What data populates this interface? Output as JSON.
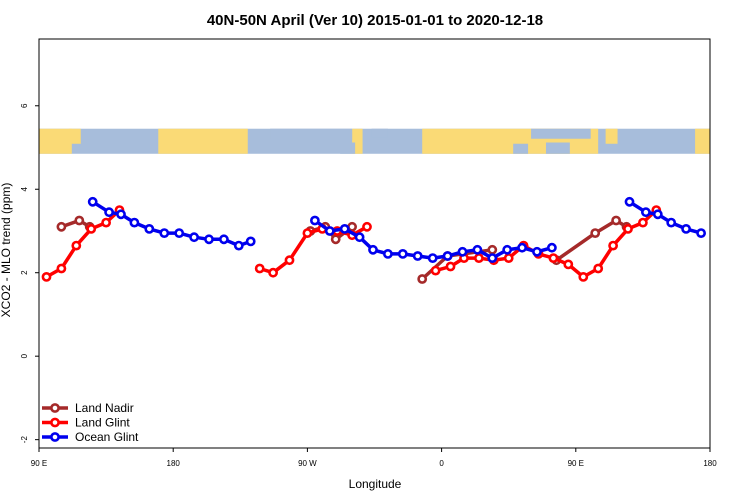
{
  "chart_data": {
    "type": "line",
    "title": "40N-50N April (Ver 10)   2015-01-01 to 2020-12-18",
    "xlabel": "Longitude",
    "ylabel": "XCO2 - MLO trend (ppm)",
    "xlim": [
      90,
      540
    ],
    "ylim": [
      -2.2,
      7.6
    ],
    "x_ticks": [
      {
        "value": 90,
        "label": "90 E"
      },
      {
        "value": 180,
        "label": "180"
      },
      {
        "value": 270,
        "label": "90 W"
      },
      {
        "value": 360,
        "label": "0"
      },
      {
        "value": 450,
        "label": "90 E"
      },
      {
        "value": 540,
        "label": "180"
      }
    ],
    "y_ticks": [
      {
        "value": -2,
        "label": "-2"
      },
      {
        "value": 0,
        "label": "0"
      },
      {
        "value": 2,
        "label": "2"
      },
      {
        "value": 4,
        "label": "4"
      },
      {
        "value": 6,
        "label": "6"
      }
    ],
    "map_strip": {
      "ymin": 4.85,
      "ymax": 5.45,
      "land_color": "#FADA76",
      "ocean_color": "#A7BDDB"
    },
    "legend_position": "bottom-left",
    "series": [
      {
        "name": "Land Nadir",
        "color": "#A52A2A",
        "segments": [
          [
            [
              105,
              3.1
            ],
            [
              117,
              3.25
            ],
            [
              124,
              3.1
            ]
          ],
          [
            [
              272,
              3.0
            ],
            [
              282,
              3.1
            ],
            [
              289,
              2.8
            ],
            [
              300,
              3.1
            ]
          ],
          [
            [
              347,
              1.85
            ],
            [
              364,
              2.4
            ],
            [
              394,
              2.55
            ]
          ],
          [
            [
              437,
              2.3
            ],
            [
              463,
              2.95
            ],
            [
              477,
              3.25
            ],
            [
              484,
              3.1
            ]
          ]
        ]
      },
      {
        "name": "Land Glint",
        "color": "#FF0000",
        "segments": [
          [
            [
              95,
              1.9
            ],
            [
              105,
              2.1
            ],
            [
              115,
              2.65
            ],
            [
              125,
              3.05
            ],
            [
              135,
              3.2
            ],
            [
              144,
              3.5
            ]
          ],
          [
            [
              238,
              2.1
            ],
            [
              247,
              2.0
            ],
            [
              258,
              2.3
            ],
            [
              270,
              2.95
            ],
            [
              280,
              3.05
            ],
            [
              290,
              3.0
            ],
            [
              300,
              2.9
            ],
            [
              310,
              3.1
            ]
          ],
          [
            [
              356,
              2.05
            ],
            [
              366,
              2.15
            ],
            [
              375,
              2.35
            ],
            [
              385,
              2.35
            ],
            [
              395,
              2.3
            ],
            [
              405,
              2.35
            ],
            [
              415,
              2.65
            ],
            [
              425,
              2.45
            ],
            [
              435,
              2.35
            ],
            [
              445,
              2.2
            ],
            [
              455,
              1.9
            ],
            [
              465,
              2.1
            ],
            [
              475,
              2.65
            ],
            [
              485,
              3.05
            ],
            [
              495,
              3.2
            ],
            [
              504,
              3.5
            ]
          ]
        ]
      },
      {
        "name": "Ocean Glint",
        "color": "#0000EE",
        "segments": [
          [
            [
              126,
              3.7
            ],
            [
              137,
              3.45
            ],
            [
              145,
              3.4
            ],
            [
              154,
              3.2
            ],
            [
              164,
              3.05
            ],
            [
              174,
              2.95
            ],
            [
              184,
              2.95
            ],
            [
              194,
              2.85
            ],
            [
              204,
              2.8
            ],
            [
              214,
              2.8
            ],
            [
              224,
              2.65
            ],
            [
              232,
              2.75
            ]
          ],
          [
            [
              275,
              3.25
            ],
            [
              285,
              3.0
            ],
            [
              295,
              3.05
            ],
            [
              305,
              2.85
            ],
            [
              314,
              2.55
            ],
            [
              324,
              2.45
            ],
            [
              334,
              2.45
            ],
            [
              344,
              2.4
            ],
            [
              354,
              2.35
            ],
            [
              364,
              2.4
            ],
            [
              374,
              2.5
            ],
            [
              384,
              2.55
            ],
            [
              394,
              2.35
            ],
            [
              404,
              2.55
            ],
            [
              414,
              2.6
            ],
            [
              424,
              2.5
            ],
            [
              434,
              2.6
            ]
          ],
          [
            [
              486,
              3.7
            ],
            [
              497,
              3.45
            ],
            [
              505,
              3.4
            ],
            [
              514,
              3.2
            ],
            [
              524,
              3.05
            ],
            [
              534,
              2.95
            ]
          ]
        ]
      }
    ]
  }
}
